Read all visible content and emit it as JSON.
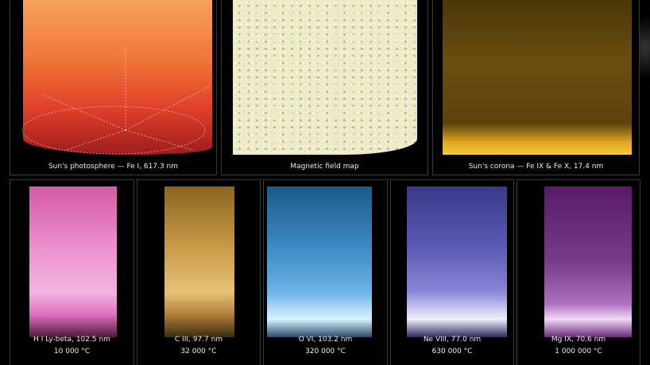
{
  "top": [
    {
      "caption": "Sun's photosphere — Fe I, 617.3 nm"
    },
    {
      "caption": "Magnetic field map"
    },
    {
      "caption": "Sun's corona — Fe IX & Fe X, 17.4 nm"
    }
  ],
  "bottom": [
    {
      "line1": "H I Ly-beta, 102.5 nm",
      "line2": "10 000 °C"
    },
    {
      "line1": "C III, 97.7 nm",
      "line2": "32 000 °C"
    },
    {
      "line1": "O VI, 103.2 nm",
      "line2": "320 000 °C"
    },
    {
      "line1": "Ne VIII, 77.0 nm",
      "line2": "630 000 °C"
    },
    {
      "line1": "Mg IX, 70.6 nm",
      "line2": "1 000 000 °C"
    }
  ]
}
